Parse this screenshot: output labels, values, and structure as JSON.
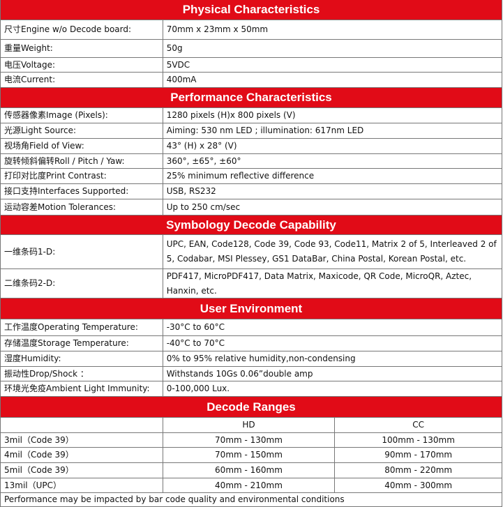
{
  "sections": [
    {
      "title": "Physical Characteristics",
      "rows": [
        [
          "尺寸Engine w/o Decode board:",
          "70mm x 23mm x 50mm"
        ],
        [
          "重量Weight:",
          "50g"
        ],
        [
          "电压Voltage:",
          "5VDC"
        ],
        [
          "电流Current:",
          "400mA"
        ]
      ]
    },
    {
      "title": "Performance Characteristics",
      "rows": [
        [
          "传感器像素Image (Pixels):",
          "1280 pixels (H)x 800 pixels (V)"
        ],
        [
          "光源Light Source:",
          "Aiming: 530 nm LED ; illumination: 617nm LED"
        ],
        [
          "视场角Field of View:",
          "43° (H) x 28° (V)"
        ],
        [
          "旋转倾斜偏转Roll / Pitch / Yaw:",
          "360°, ±65°, ±60°"
        ],
        [
          "打印对比度Print Contrast:",
          "25% minimum reflective difference"
        ],
        [
          "接口支持Interfaces Supported:",
          "USB, RS232"
        ],
        [
          "运动容差Motion Tolerances:",
          "Up to 250 cm/sec"
        ]
      ]
    },
    {
      "title": "Symbology Decode Capability",
      "rows": [
        [
          "一维条码1-D:",
          "UPC, EAN, Code128, Code 39, Code 93, Code11, Matrix 2 of 5, Interleaved 2 of 5, Codabar, MSI Plessey, GS1 DataBar, China Postal, Korean Postal, etc."
        ],
        [
          "二维条码2-D:",
          "PDF417, MicroPDF417, Data Matrix, Maxicode, QR Code, MicroQR, Aztec, Hanxin, etc."
        ]
      ]
    },
    {
      "title": "User Environment",
      "rows": [
        [
          "工作温度Operating Temperature:",
          "-30°C to 60°C"
        ],
        [
          "存储温度Storage Temperature:",
          "-40°C to 70°C"
        ],
        [
          "湿度Humidity:",
          "0% to 95% relative humidity,non-condensing"
        ],
        [
          "振动性Drop/Shock ：",
          "Withstands 10Gs 0.06”double amp"
        ],
        [
          "环境光免疫Ambient Light Immunity:",
          "0-100,000 Lux."
        ]
      ]
    }
  ],
  "decode_ranges": {
    "title": "Decode Ranges",
    "columns": [
      "HD",
      "CC"
    ],
    "rows": [
      [
        "3mil（Code 39）",
        "70mm - 130mm",
        "100mm - 130mm"
      ],
      [
        "4mil（Code 39）",
        "70mm - 150mm",
        "90mm - 170mm"
      ],
      [
        "5mil（Code 39）",
        "60mm - 160mm",
        "80mm - 220mm"
      ],
      [
        "13mil（UPC）",
        "40mm - 210mm",
        "40mm - 300mm"
      ]
    ]
  },
  "footer": "Performance may be impacted by bar code quality and environmental conditions"
}
